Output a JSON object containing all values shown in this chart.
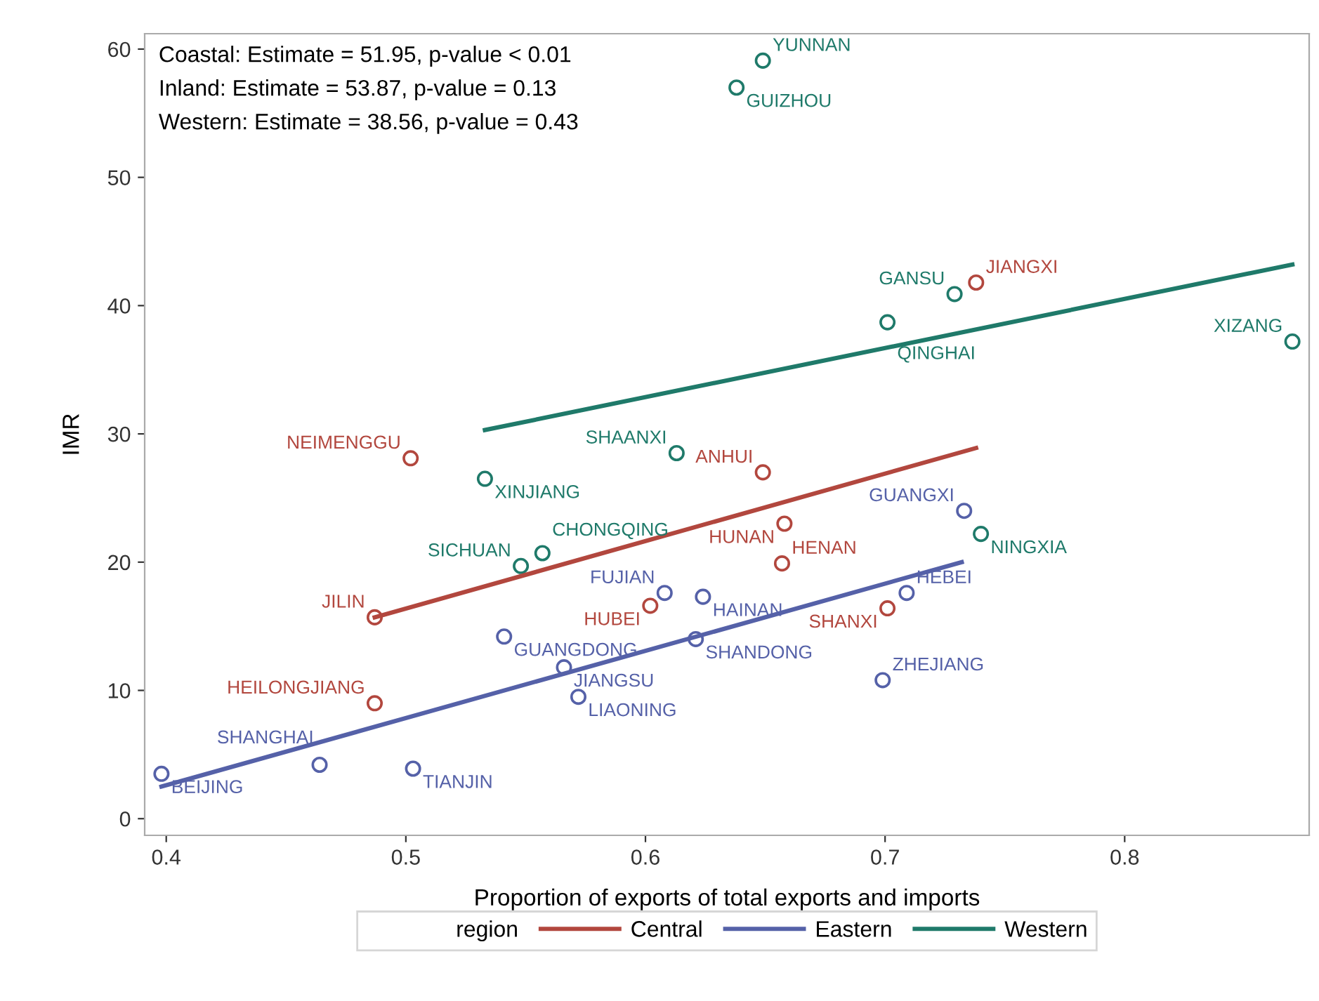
{
  "chart_data": {
    "type": "scatter",
    "xlabel": "Proportion of exports of total exports and imports",
    "ylabel": "IMR",
    "legend_title": "region",
    "legend": "bottom",
    "grid": false,
    "marker": "circle",
    "xlim": [
      0.391,
      0.877
    ],
    "xticks": [
      0.4,
      0.5,
      0.6,
      0.7,
      0.8
    ],
    "ylim": [
      -1.3,
      61.2
    ],
    "yticks": [
      0,
      10,
      20,
      30,
      40,
      50,
      60
    ],
    "series": [
      {
        "color": "#b2473e",
        "x": [
          0.502,
          0.649,
          0.658,
          0.657,
          0.738,
          0.487,
          0.602,
          0.701,
          0.487
        ],
        "values": [
          28.1,
          27.0,
          23.0,
          19.9,
          41.8,
          15.7,
          16.6,
          16.4,
          9.0
        ]
      },
      {
        "color": "#5561a8",
        "x": [
          0.398,
          0.464,
          0.503,
          0.541,
          0.566,
          0.572,
          0.608,
          0.624,
          0.621,
          0.733,
          0.709,
          0.699
        ],
        "values": [
          3.5,
          4.2,
          3.9,
          14.2,
          11.8,
          9.5,
          17.6,
          17.3,
          14.0,
          24.0,
          17.6,
          10.8
        ]
      },
      {
        "color": "#1f7a6a",
        "x": [
          0.649,
          0.638,
          0.729,
          0.701,
          0.87,
          0.74,
          0.613,
          0.533,
          0.557,
          0.548
        ],
        "values": [
          59.1,
          57.0,
          40.9,
          38.7,
          37.2,
          22.2,
          28.5,
          26.5,
          20.7,
          19.7
        ]
      },
      {
        "type": "line",
        "marker": "none",
        "name": "Central",
        "color": "#b2473e",
        "x": [
          0.487,
          0.738
        ],
        "values": [
          15.7,
          28.9
        ]
      },
      {
        "type": "line",
        "marker": "none",
        "name": "Eastern",
        "color": "#5561a8",
        "x": [
          0.398,
          0.732
        ],
        "values": [
          2.5,
          20.0
        ]
      },
      {
        "type": "line",
        "marker": "none",
        "name": "Western",
        "color": "#1f7a6a",
        "x": [
          0.533,
          0.87
        ],
        "values": [
          30.3,
          43.2
        ]
      }
    ],
    "annotations": [
      "Coastal: Estimate = 51.95, p-value < 0.01",
      "Inland: Estimate = 53.87, p-value = 0.13",
      "Western: Estimate = 38.56, p-value = 0.43",
      {
        "text": "NEIMENGGU",
        "x": 0.502,
        "y": 28.1
      },
      {
        "text": "ANHUI",
        "x": 0.649,
        "y": 27.0
      },
      {
        "text": "HUNAN",
        "x": 0.658,
        "y": 23.0
      },
      {
        "text": "HENAN",
        "x": 0.657,
        "y": 19.9
      },
      {
        "text": "JIANGXI",
        "x": 0.738,
        "y": 41.8
      },
      {
        "text": "JILIN",
        "x": 0.487,
        "y": 15.7
      },
      {
        "text": "HUBEI",
        "x": 0.602,
        "y": 16.6
      },
      {
        "text": "SHANXI",
        "x": 0.701,
        "y": 16.4
      },
      {
        "text": "HEILONGJIANG",
        "x": 0.487,
        "y": 9.0
      },
      {
        "text": "BEIJING",
        "x": 0.398,
        "y": 3.5
      },
      {
        "text": "SHANGHAI",
        "x": 0.464,
        "y": 4.2
      },
      {
        "text": "TIANJIN",
        "x": 0.503,
        "y": 3.9
      },
      {
        "text": "GUANGDONG",
        "x": 0.541,
        "y": 14.2
      },
      {
        "text": "JIANGSU",
        "x": 0.566,
        "y": 11.8
      },
      {
        "text": "LIAONING",
        "x": 0.572,
        "y": 9.5
      },
      {
        "text": "FUJIAN",
        "x": 0.608,
        "y": 17.6
      },
      {
        "text": "HAINAN",
        "x": 0.624,
        "y": 17.3
      },
      {
        "text": "SHANDONG",
        "x": 0.621,
        "y": 14.0
      },
      {
        "text": "GUANGXI",
        "x": 0.733,
        "y": 24.0
      },
      {
        "text": "HEBEI",
        "x": 0.709,
        "y": 17.6
      },
      {
        "text": "ZHEJIANG",
        "x": 0.699,
        "y": 10.8
      },
      {
        "text": "YUNNAN",
        "x": 0.649,
        "y": 59.1
      },
      {
        "text": "GUIZHOU",
        "x": 0.638,
        "y": 57.0
      },
      {
        "text": "GANSU",
        "x": 0.729,
        "y": 40.9
      },
      {
        "text": "QINGHAI",
        "x": 0.701,
        "y": 38.7
      },
      {
        "text": "XIZANG",
        "x": 0.87,
        "y": 37.2
      },
      {
        "text": "NINGXIA",
        "x": 0.74,
        "y": 22.2
      },
      {
        "text": "SHAANXI",
        "x": 0.613,
        "y": 28.5
      },
      {
        "text": "XINJIANG",
        "x": 0.533,
        "y": 26.5
      },
      {
        "text": "CHONGQING",
        "x": 0.557,
        "y": 20.7
      },
      {
        "text": "SICHUAN",
        "x": 0.548,
        "y": 19.7
      }
    ]
  }
}
